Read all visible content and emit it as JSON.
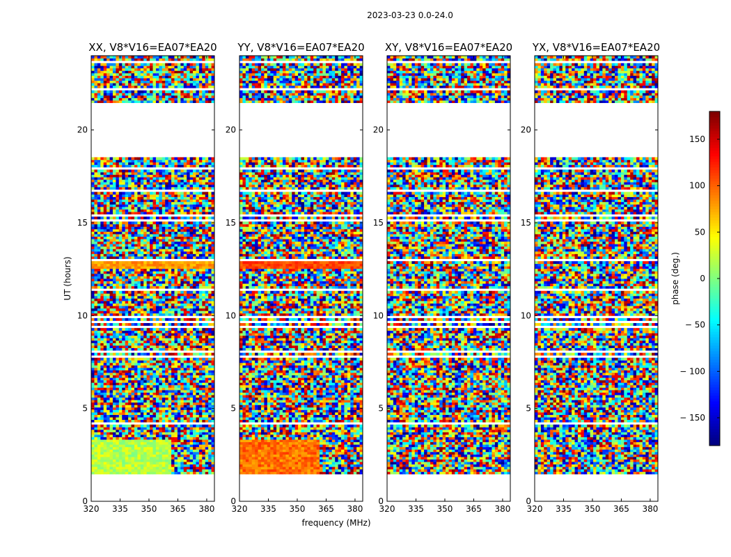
{
  "chart_data": {
    "type": "heatmap",
    "title": "2023-03-23 0.0-24.0",
    "xlabel": "frequency (MHz)",
    "ylabel": "UT (hours)",
    "xlim": [
      320,
      384
    ],
    "ylim": [
      0,
      24
    ],
    "x_ticks": [
      320,
      335,
      350,
      365,
      380
    ],
    "y_ticks": [
      0,
      5,
      10,
      15,
      20
    ],
    "panels": [
      {
        "title": "XX, V8*V16=EA07*EA20",
        "low_band_bias": 20,
        "low_band_edge_mhz": 361,
        "narrow_band_hour": 12.7,
        "narrow_band_phase": 80
      },
      {
        "title": "YY, V8*V16=EA07*EA20",
        "low_band_bias": 95,
        "low_band_edge_mhz": 361,
        "narrow_band_hour": 12.7,
        "narrow_band_phase": 110
      },
      {
        "title": "XY, V8*V16=EA07*EA20",
        "low_band_bias": null,
        "low_band_edge_mhz": null,
        "narrow_band_hour": null,
        "narrow_band_phase": null
      },
      {
        "title": "YX, V8*V16=EA07*EA20",
        "low_band_bias": null,
        "low_band_edge_mhz": null,
        "narrow_band_hour": null,
        "narrow_band_phase": null
      }
    ],
    "data_gaps_hours": [
      [
        0,
        1.5
      ],
      [
        18.6,
        21.4
      ]
    ],
    "colorbar": {
      "label": "phase (deg.)",
      "range": [
        -180,
        180
      ],
      "ticks": [
        150,
        100,
        50,
        0,
        -50,
        -100,
        -150
      ],
      "tick_labels": [
        "150",
        "100",
        "50",
        "0",
        "− 50",
        "− 100",
        "− 150"
      ],
      "colormap": "jet"
    }
  }
}
